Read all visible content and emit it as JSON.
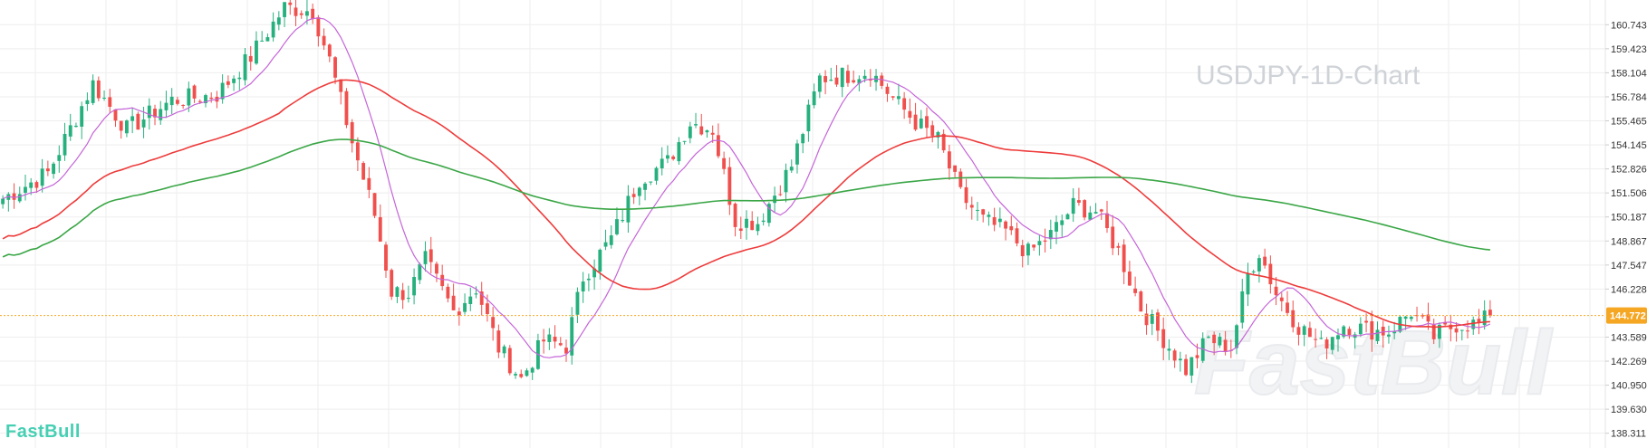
{
  "brand": {
    "logo_text": "FastBull",
    "watermark_text": "FastBull"
  },
  "colors": {
    "bull": "#26b07e",
    "bear": "#f0504d",
    "ma_short": "#c565d8",
    "ma_mid": "#ee3b3b",
    "ma_long": "#3aa646",
    "last_price": "#f5a623",
    "grid": "#eeeeee"
  },
  "chart_data": {
    "type": "candlestick",
    "title": "USDJPY-1D-Chart",
    "ylim": [
      137.5,
      162.1
    ],
    "y_ticks": [
      "160.743",
      "159.423",
      "158.104",
      "156.784",
      "155.465",
      "154.145",
      "152.826",
      "151.506",
      "150.187",
      "148.867",
      "147.547",
      "146.228",
      "143.589",
      "142.269",
      "140.950",
      "139.630",
      "138.311"
    ],
    "last_price": "144.772",
    "bars_count": 265,
    "close_anchors": [
      [
        0,
        151.2
      ],
      [
        8,
        152.6
      ],
      [
        16,
        157.5
      ],
      [
        22,
        155.0
      ],
      [
        30,
        156.6
      ],
      [
        38,
        156.9
      ],
      [
        44,
        159.0
      ],
      [
        50,
        161.7
      ],
      [
        55,
        161.5
      ],
      [
        58,
        158.8
      ],
      [
        62,
        154.3
      ],
      [
        66,
        150.3
      ],
      [
        69,
        146.1
      ],
      [
        72,
        146.0
      ],
      [
        75,
        147.8
      ],
      [
        80,
        145.0
      ],
      [
        84,
        146.3
      ],
      [
        88,
        143.0
      ],
      [
        92,
        141.3
      ],
      [
        96,
        143.4
      ],
      [
        100,
        143.1
      ],
      [
        103,
        146.9
      ],
      [
        108,
        149.0
      ],
      [
        113,
        152.3
      ],
      [
        118,
        153.2
      ],
      [
        122,
        155.4
      ],
      [
        126,
        155.0
      ],
      [
        130,
        150.0
      ],
      [
        134,
        149.9
      ],
      [
        140,
        153.0
      ],
      [
        145,
        157.8
      ],
      [
        150,
        158.0
      ],
      [
        154,
        158.2
      ],
      [
        158,
        156.7
      ],
      [
        162,
        155.4
      ],
      [
        166,
        154.4
      ],
      [
        170,
        151.4
      ],
      [
        174,
        150.0
      ],
      [
        178,
        149.4
      ],
      [
        182,
        148.2
      ],
      [
        186,
        149.2
      ],
      [
        190,
        150.8
      ],
      [
        194,
        150.5
      ],
      [
        198,
        148.3
      ],
      [
        202,
        145.2
      ],
      [
        206,
        143.5
      ],
      [
        210,
        141.8
      ],
      [
        214,
        143.5
      ],
      [
        218,
        143.0
      ],
      [
        221,
        147.0
      ],
      [
        223,
        148.3
      ],
      [
        226,
        146.0
      ],
      [
        230,
        144.2
      ],
      [
        234,
        143.1
      ],
      [
        238,
        144.3
      ],
      [
        242,
        144.0
      ],
      [
        246,
        143.9
      ],
      [
        250,
        145.0
      ],
      [
        254,
        143.6
      ],
      [
        258,
        144.3
      ],
      [
        262,
        144.3
      ],
      [
        264,
        144.772
      ]
    ],
    "moving_averages": [
      {
        "period": 10,
        "color_key": "ma_short"
      },
      {
        "period": 50,
        "color_key": "ma_mid"
      },
      {
        "period": 200,
        "color_key": "ma_long"
      }
    ]
  }
}
